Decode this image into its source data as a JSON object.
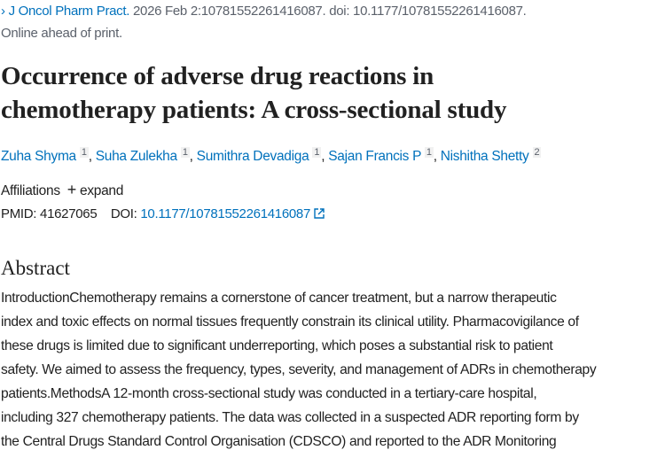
{
  "citation": {
    "journal": "J Oncol Pharm Pract.",
    "details": " 2026 Feb 2:10781552261416087. doi: 10.1177/10781552261416087.",
    "status": "Online ahead of print."
  },
  "title_lines": [
    "Occurrence of adverse drug reactions in",
    "chemotherapy patients: A cross-sectional study"
  ],
  "authors": [
    {
      "name": "Zuha Shyma",
      "aff": "1"
    },
    {
      "name": "Suha Zulekha",
      "aff": "1"
    },
    {
      "name": "Sumithra Devadiga",
      "aff": "1"
    },
    {
      "name": "Sajan Francis P",
      "aff": "1"
    },
    {
      "name": "Nishitha Shetty",
      "aff": "2"
    }
  ],
  "affiliations": {
    "label": "Affiliations",
    "expand": "expand"
  },
  "ids": {
    "pmid_label": "PMID:",
    "pmid": "41627065",
    "doi_label": "DOI:",
    "doi": "10.1177/10781552261416087"
  },
  "abstract": {
    "heading": "Abstract",
    "lines": [
      "IntroductionChemotherapy remains a cornerstone of cancer treatment, but a narrow therapeutic",
      "index and toxic effects on normal tissues frequently constrain its clinical utility. Pharmacovigilance of",
      "these drugs is limited due to significant underreporting, which poses a substantial risk to patient",
      "safety. We aimed to assess the frequency, types, severity, and management of ADRs in chemotherapy",
      "patients.MethodsA 12-month cross-sectional study was conducted in a tertiary-care hospital,",
      "including 327 chemotherapy patients. The data was collected in a suspected ADR reporting form by",
      "the Central Drugs Standard Control Organisation (CDSCO) and reported to the ADR Monitoring"
    ]
  },
  "colors": {
    "link": "#0071bc",
    "text": "#212121",
    "muted": "#5b616b"
  }
}
